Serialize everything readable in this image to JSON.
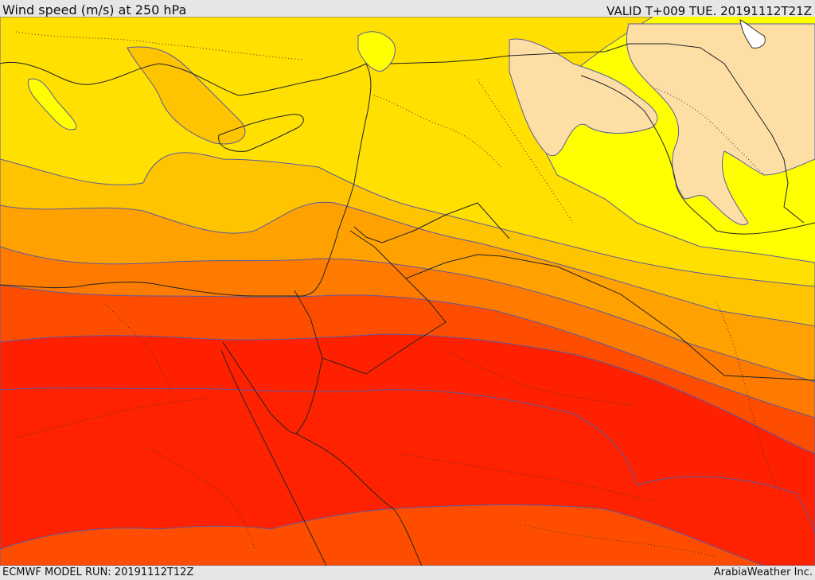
{
  "header": {
    "title": "Wind speed (m/s) at 250 hPa",
    "valid": "VALID T+009 TUE. 20191112T21Z"
  },
  "footer": {
    "model_run": "ECMWF MODEL RUN: 20191112T12Z",
    "credit": "ArabiaWeather Inc."
  },
  "map": {
    "region": "Eastern Mediterranean, Egypt, Levant, Arabian Peninsula",
    "field": "wind-speed-250hPa",
    "shading_colors": [
      "#fddfa6",
      "#ffff00",
      "#ffe000",
      "#ffc400",
      "#ffa100",
      "#ff7b00",
      "#ff4d00",
      "#ff2000"
    ],
    "land_outline": "#333333",
    "contour_line": "#5050a0"
  }
}
